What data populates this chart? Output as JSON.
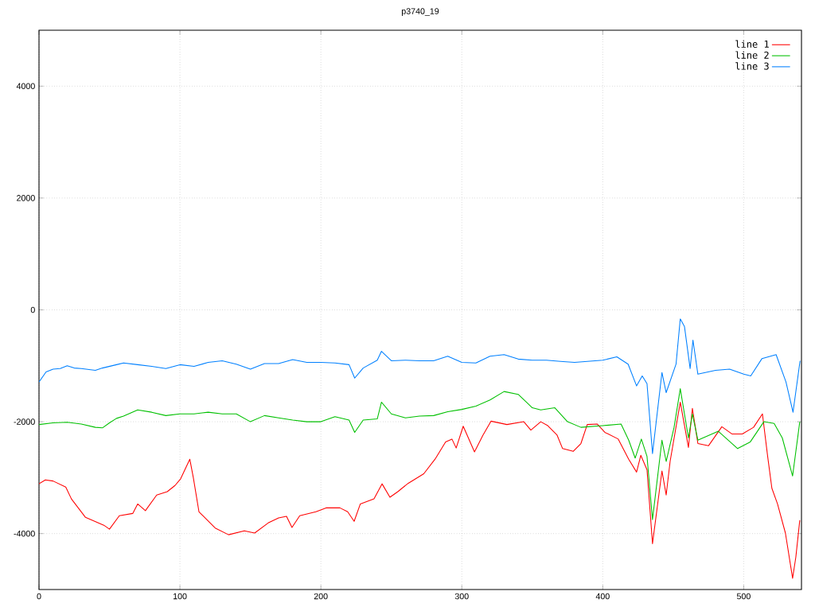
{
  "chart_data": {
    "type": "line",
    "title": "p3740_19",
    "xlim": [
      0,
      541
    ],
    "ylim": [
      -5000,
      5000
    ],
    "xticks": [
      0,
      100,
      200,
      300,
      400,
      500
    ],
    "yticks": [
      -4000,
      -2000,
      0,
      2000,
      4000
    ],
    "grid": true,
    "legend": "top right",
    "marker": "none",
    "line_style": "solid",
    "series": [
      {
        "name": "line 1",
        "color": "#ff0000",
        "x": [
          0,
          4.5,
          10,
          19,
          23,
          33,
          46,
          50,
          57,
          66.5,
          70,
          75.5,
          83.5,
          91,
          96.5,
          100.5,
          107,
          109.5,
          113.5,
          125,
          134.5,
          145.7,
          153,
          162.6,
          170,
          175.6,
          179.5,
          185,
          196.5,
          204,
          213.5,
          219,
          223.6,
          228,
          237.7,
          243.4,
          249,
          254.6,
          262,
          273,
          281,
          288.5,
          293,
          296,
          301,
          309,
          315,
          320.7,
          332,
          344,
          349,
          356,
          361,
          367.6,
          371.5,
          379,
          384.5,
          389,
          396,
          401.5,
          411,
          418.4,
          424,
          427,
          431.4,
          435.3,
          442,
          445,
          447.8,
          455,
          460.8,
          463.6,
          467.5,
          475,
          484.5,
          491.8,
          499,
          507,
          513.3,
          517,
          520,
          524,
          529.6,
          534.7,
          537,
          539.8
        ],
        "values": [
          -3110,
          -3040,
          -3060,
          -3170,
          -3380,
          -3710,
          -3850,
          -3920,
          -3680,
          -3640,
          -3470,
          -3590,
          -3310,
          -3250,
          -3140,
          -3020,
          -2670,
          -3000,
          -3610,
          -3900,
          -4020,
          -3950,
          -3990,
          -3810,
          -3720,
          -3690,
          -3890,
          -3680,
          -3610,
          -3540,
          -3540,
          -3610,
          -3780,
          -3470,
          -3380,
          -3110,
          -3350,
          -3250,
          -3100,
          -2930,
          -2670,
          -2360,
          -2310,
          -2470,
          -2080,
          -2540,
          -2240,
          -1990,
          -2050,
          -2000,
          -2150,
          -2000,
          -2070,
          -2240,
          -2480,
          -2530,
          -2390,
          -2050,
          -2040,
          -2190,
          -2310,
          -2670,
          -2900,
          -2600,
          -2860,
          -4180,
          -2880,
          -3310,
          -2710,
          -1650,
          -2460,
          -1760,
          -2390,
          -2430,
          -2090,
          -2220,
          -2220,
          -2100,
          -1860,
          -2620,
          -3190,
          -3470,
          -3990,
          -4800,
          -4420,
          -3760
        ]
      },
      {
        "name": "line 2",
        "color": "#00c000",
        "x": [
          0,
          10,
          20,
          30,
          40,
          45,
          50,
          55,
          60,
          70,
          80,
          90,
          100,
          110,
          120,
          130,
          140,
          150,
          160,
          170,
          180,
          190,
          200,
          210,
          220,
          224,
          230,
          240,
          243,
          250,
          260,
          270,
          280,
          290,
          300,
          310,
          320,
          330,
          340,
          350,
          356,
          366,
          375,
          384.5,
          400,
          413,
          418.4,
          423,
          427.4,
          431.4,
          435.3,
          442,
          445,
          450.6,
          455,
          460.8,
          463.6,
          467.5,
          482,
          495.7,
          504.7,
          514.3,
          521.6,
          527.4,
          534.7,
          539.8
        ],
        "values": [
          -2050,
          -2020,
          -2010,
          -2040,
          -2100,
          -2110,
          -2020,
          -1940,
          -1900,
          -1790,
          -1830,
          -1890,
          -1860,
          -1860,
          -1830,
          -1860,
          -1860,
          -2000,
          -1890,
          -1930,
          -1970,
          -2000,
          -2000,
          -1910,
          -1970,
          -2190,
          -1970,
          -1950,
          -1650,
          -1860,
          -1930,
          -1900,
          -1890,
          -1820,
          -1780,
          -1720,
          -1610,
          -1460,
          -1510,
          -1750,
          -1790,
          -1750,
          -2000,
          -2100,
          -2070,
          -2040,
          -2330,
          -2650,
          -2310,
          -2620,
          -3750,
          -2330,
          -2710,
          -2100,
          -1410,
          -2290,
          -1860,
          -2330,
          -2170,
          -2480,
          -2360,
          -2000,
          -2030,
          -2290,
          -2970,
          -2000
        ]
      },
      {
        "name": "line 3",
        "color": "#0080ff",
        "x": [
          0,
          5,
          10,
          15,
          20,
          25,
          30,
          40,
          45,
          50,
          55,
          60,
          70,
          80,
          90,
          100,
          110,
          120,
          130,
          140,
          150,
          160,
          170,
          180,
          190,
          200,
          210,
          220,
          224,
          230,
          240,
          243,
          250,
          260,
          270,
          280,
          290,
          300,
          310,
          320,
          330,
          340,
          350,
          360,
          370,
          380,
          390,
          400,
          410,
          418,
          424,
          428,
          431.4,
          435.3,
          442,
          445,
          452,
          455,
          458,
          462,
          464,
          467.5,
          480,
          490,
          500,
          505,
          513,
          523,
          530,
          535,
          540
        ],
        "values": [
          -1290,
          -1110,
          -1060,
          -1050,
          -1000,
          -1040,
          -1050,
          -1080,
          -1040,
          -1010,
          -980,
          -950,
          -980,
          -1010,
          -1050,
          -980,
          -1010,
          -940,
          -910,
          -970,
          -1060,
          -960,
          -960,
          -890,
          -940,
          -940,
          -950,
          -980,
          -1220,
          -1040,
          -900,
          -740,
          -910,
          -900,
          -910,
          -910,
          -830,
          -940,
          -950,
          -830,
          -800,
          -880,
          -900,
          -900,
          -920,
          -940,
          -920,
          -900,
          -840,
          -970,
          -1360,
          -1180,
          -1320,
          -2570,
          -1120,
          -1480,
          -970,
          -160,
          -300,
          -1050,
          -540,
          -1150,
          -1080,
          -1060,
          -1150,
          -1180,
          -870,
          -800,
          -1290,
          -1830,
          -910
        ]
      }
    ]
  }
}
